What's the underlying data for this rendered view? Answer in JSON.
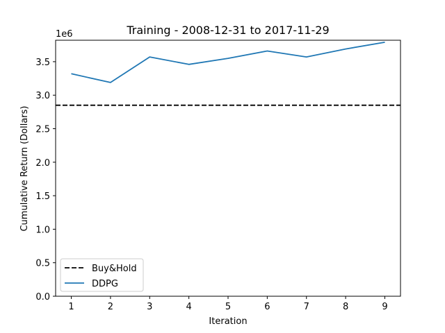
{
  "chart_data": {
    "type": "line",
    "title": "Training - 2008-12-31 to 2017-11-29",
    "xlabel": "Iteration",
    "ylabel": "Cumulative Return (Dollars)",
    "y_offset_label": "1e6",
    "x": [
      1,
      2,
      3,
      4,
      5,
      6,
      7,
      8,
      9
    ],
    "xlim": [
      0.6,
      9.4
    ],
    "ylim": [
      0,
      3.82
    ],
    "x_ticks": [
      1,
      2,
      3,
      4,
      5,
      6,
      7,
      8,
      9
    ],
    "y_ticks": [
      0.0,
      0.5,
      1.0,
      1.5,
      2.0,
      2.5,
      3.0,
      3.5
    ],
    "y_tick_labels": [
      "0.0",
      "0.5",
      "1.0",
      "1.5",
      "2.0",
      "2.5",
      "3.0",
      "3.5"
    ],
    "grid": false,
    "legend": "lower-left",
    "series": [
      {
        "name": "Buy&Hold",
        "style": "dashed",
        "color": "#000000",
        "values": [
          2.85,
          2.85,
          2.85,
          2.85,
          2.85,
          2.85,
          2.85,
          2.85,
          2.85
        ]
      },
      {
        "name": "DDPG",
        "style": "solid",
        "color": "#1f77b4",
        "values": [
          3.32,
          3.19,
          3.57,
          3.46,
          3.55,
          3.66,
          3.57,
          3.69,
          3.79
        ]
      }
    ]
  }
}
